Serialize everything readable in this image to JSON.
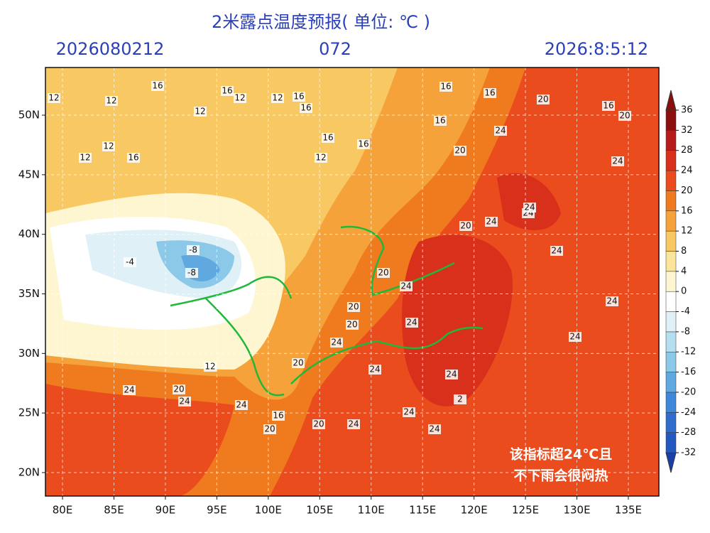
{
  "map": {
    "title": "2米露点温度预报( 单位: ℃ )",
    "init_time": "2026080212",
    "forecast_hour": "072",
    "valid_time": "2026:8:5:12",
    "xlim": [
      78.34,
      137.97
    ],
    "ylim": [
      18.03,
      54.0
    ],
    "xticks": [
      {
        "value": 80,
        "label": "80E"
      },
      {
        "value": 85,
        "label": "85E"
      },
      {
        "value": 90,
        "label": "90E"
      },
      {
        "value": 95,
        "label": "95E"
      },
      {
        "value": 100,
        "label": "100E"
      },
      {
        "value": 105,
        "label": "105E"
      },
      {
        "value": 110,
        "label": "110E"
      },
      {
        "value": 115,
        "label": "115E"
      },
      {
        "value": 120,
        "label": "120E"
      },
      {
        "value": 125,
        "label": "125E"
      },
      {
        "value": 130,
        "label": "130E"
      },
      {
        "value": 135,
        "label": "135E"
      }
    ],
    "yticks": [
      {
        "value": 20,
        "label": "20N"
      },
      {
        "value": 25,
        "label": "25N"
      },
      {
        "value": 30,
        "label": "30N"
      },
      {
        "value": 35,
        "label": "35N"
      },
      {
        "value": 40,
        "label": "40N"
      },
      {
        "value": 45,
        "label": "45N"
      },
      {
        "value": 50,
        "label": "50N"
      }
    ],
    "grid": true,
    "colorbar": {
      "ticks": [
        -32,
        -28,
        -24,
        -20,
        -16,
        -12,
        -8,
        -4,
        0,
        4,
        8,
        12,
        16,
        20,
        24,
        28,
        32,
        36
      ],
      "colors": [
        "#1a3fa8",
        "#2457c0",
        "#2f6ccc",
        "#3f87d8",
        "#5fa8e0",
        "#8cc8e8",
        "#b5dfee",
        "#dff1f7",
        "#ffffff",
        "#fdf6d0",
        "#fbe59a",
        "#f8c863",
        "#f5a23a",
        "#f07a1e",
        "#ea4c1e",
        "#d8301a",
        "#b71c1c",
        "#8b0f0f"
      ]
    },
    "contour_labels": [
      "12",
      "12",
      "16",
      "16",
      "12",
      "12",
      "16",
      "16",
      "16",
      "16",
      "20",
      "16",
      "20",
      "12",
      "12",
      "12",
      "16",
      "16",
      "12",
      "16",
      "16",
      "20",
      "24",
      "24",
      "20",
      "24",
      "24",
      "24",
      "24",
      "-8",
      "-4",
      "-8",
      "20",
      "24",
      "20",
      "20",
      "24",
      "24",
      "24",
      "20",
      "24",
      "12",
      "20",
      "16",
      "24",
      "24",
      "24",
      "20",
      "24",
      "24",
      "24",
      "20",
      "24",
      "24",
      "2"
    ],
    "annotation": [
      "该指标超24℃且",
      "不下雨会很闷热"
    ]
  }
}
